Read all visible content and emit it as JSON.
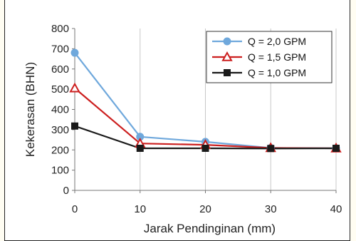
{
  "chart_data": {
    "type": "line",
    "title": "",
    "xlabel": "Jarak Pendinginan (mm)",
    "ylabel": "Kekerasan (BHN)",
    "x": [
      0,
      10,
      20,
      30,
      40
    ],
    "x_ticks": [
      "0",
      "10",
      "20",
      "30",
      "40"
    ],
    "y_ticks": [
      "0",
      "100",
      "200",
      "300",
      "400",
      "500",
      "600",
      "700",
      "800"
    ],
    "xlim": [
      0,
      40
    ],
    "ylim": [
      0,
      800
    ],
    "grid": "vertical",
    "legend_position": "top-right",
    "series": [
      {
        "name": "Q = 2,0 GPM",
        "values": [
          680,
          265,
          240,
          210,
          208
        ],
        "color": "#6fa8dc",
        "marker": "circle"
      },
      {
        "name": "Q = 1,5 GPM",
        "values": [
          505,
          232,
          225,
          210,
          208
        ],
        "color": "#cc1f1f",
        "marker": "triangle"
      },
      {
        "name": "Q = 1,0 GPM",
        "values": [
          318,
          208,
          208,
          207,
          208
        ],
        "color": "#1a1a1a",
        "marker": "square"
      }
    ]
  }
}
